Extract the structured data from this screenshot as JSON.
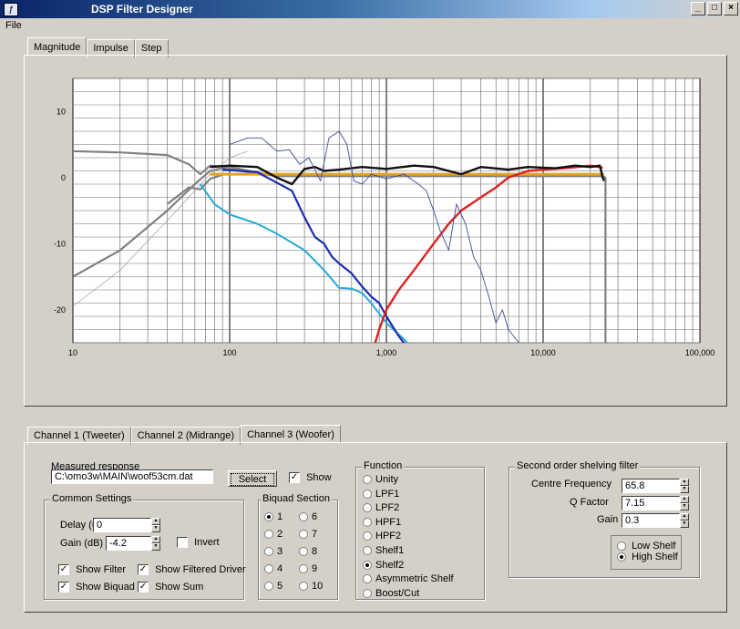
{
  "window": {
    "title": "DSP Filter Designer",
    "min": "_",
    "max": "□",
    "close": "×"
  },
  "menu": {
    "file": "File"
  },
  "plot_tabs": [
    "Magnitude",
    "Impulse",
    "Step"
  ],
  "chart_data": {
    "type": "line",
    "x_scale": "log",
    "xlim": [
      10,
      100000
    ],
    "ylim": [
      -25,
      15
    ],
    "x_ticks": [
      "10",
      "100",
      "1,000",
      "10,000",
      "100,000"
    ],
    "y_ticks": [
      "10",
      "0",
      "-10",
      "-20"
    ],
    "grid": true,
    "series": [
      {
        "color": "#808080",
        "points": [
          [
            10,
            4
          ],
          [
            20,
            3.8
          ],
          [
            40,
            3.4
          ],
          [
            55,
            2
          ],
          [
            65,
            0.5
          ],
          [
            75,
            1.8
          ],
          [
            100,
            1.6
          ],
          [
            200,
            0.2
          ],
          [
            24000,
            0.2
          ],
          [
            25000,
            0
          ],
          [
            25000,
            -25
          ]
        ]
      },
      {
        "color": "#808080",
        "points": [
          [
            10,
            -15
          ],
          [
            20,
            -11
          ],
          [
            40,
            -5
          ],
          [
            60,
            -1
          ],
          [
            75,
            1
          ],
          [
            90,
            1.4
          ],
          [
            200,
            0.2
          ]
        ]
      },
      {
        "color": "#a8a8a8",
        "points": [
          [
            10,
            -19.5
          ],
          [
            20,
            -14
          ],
          [
            40,
            -6.5
          ],
          [
            60,
            -2
          ],
          [
            75,
            0.5
          ],
          [
            100,
            3
          ],
          [
            130,
            4
          ]
        ]
      },
      {
        "color": "#808080",
        "points": [
          [
            40,
            -4
          ],
          [
            55,
            -1.5
          ],
          [
            65,
            -1.8
          ],
          [
            75,
            -0.2
          ],
          [
            90,
            0.4
          ]
        ]
      },
      {
        "color": "#e8a020",
        "points": [
          [
            75,
            0.5
          ],
          [
            24500,
            0.5
          ]
        ]
      },
      {
        "color": "#29a8d8",
        "points": [
          [
            65,
            -1
          ],
          [
            80,
            -4
          ],
          [
            100,
            -5.6
          ],
          [
            150,
            -7
          ],
          [
            200,
            -8.5
          ],
          [
            300,
            -11
          ],
          [
            400,
            -14
          ],
          [
            500,
            -16.7
          ],
          [
            600,
            -16.8
          ],
          [
            700,
            -17.5
          ],
          [
            800,
            -19
          ],
          [
            1000,
            -22
          ],
          [
            1300,
            -24.5
          ],
          [
            1600,
            -27
          ]
        ]
      },
      {
        "color": "#1a2eb0",
        "points": [
          [
            90,
            1.2
          ],
          [
            150,
            0.8
          ],
          [
            250,
            -2
          ],
          [
            300,
            -6
          ],
          [
            350,
            -9
          ],
          [
            400,
            -10
          ],
          [
            450,
            -12
          ],
          [
            500,
            -13
          ],
          [
            600,
            -14.5
          ],
          [
            700,
            -16.5
          ],
          [
            800,
            -18
          ],
          [
            900,
            -19
          ],
          [
            1000,
            -21
          ],
          [
            1200,
            -24
          ],
          [
            1500,
            -27
          ]
        ]
      },
      {
        "color": "#e02020",
        "points": [
          [
            800,
            -27
          ],
          [
            900,
            -23
          ],
          [
            1000,
            -20
          ],
          [
            1200,
            -17
          ],
          [
            1500,
            -14
          ],
          [
            2000,
            -10
          ],
          [
            2500,
            -7
          ],
          [
            3000,
            -5
          ],
          [
            4000,
            -3
          ],
          [
            5000,
            -1.5
          ],
          [
            6000,
            0
          ],
          [
            8000,
            1
          ],
          [
            10000,
            1.2
          ],
          [
            15000,
            1.5
          ],
          [
            20000,
            1.8
          ],
          [
            24000,
            1.5
          ]
        ]
      },
      {
        "color": "#101010",
        "points": [
          [
            75,
            1.6
          ],
          [
            100,
            1.8
          ],
          [
            150,
            1.6
          ],
          [
            200,
            0
          ],
          [
            250,
            -1
          ],
          [
            300,
            1.3
          ],
          [
            350,
            1.6
          ],
          [
            400,
            1
          ],
          [
            500,
            1.2
          ],
          [
            700,
            1.6
          ],
          [
            1000,
            1.3
          ],
          [
            1500,
            1.8
          ],
          [
            2000,
            1.6
          ],
          [
            3000,
            0.5
          ],
          [
            4000,
            1.6
          ],
          [
            6000,
            1.2
          ],
          [
            8000,
            1.6
          ],
          [
            12000,
            1.4
          ],
          [
            16000,
            1.8
          ],
          [
            20000,
            1.6
          ],
          [
            23000,
            1.8
          ],
          [
            24000,
            0
          ],
          [
            24500,
            -0.5
          ]
        ]
      },
      {
        "color": "#3a4a9a",
        "points": [
          [
            100,
            5
          ],
          [
            130,
            6
          ],
          [
            160,
            6
          ],
          [
            200,
            4
          ],
          [
            240,
            4.2
          ],
          [
            280,
            2
          ],
          [
            320,
            3
          ],
          [
            380,
            -0.5
          ],
          [
            430,
            6
          ],
          [
            500,
            7
          ],
          [
            560,
            5
          ],
          [
            620,
            -0.5
          ],
          [
            700,
            -1
          ],
          [
            800,
            0.5
          ],
          [
            1000,
            -0.2
          ],
          [
            1300,
            0.5
          ],
          [
            1600,
            -1
          ],
          [
            1800,
            -2
          ],
          [
            2000,
            -5
          ],
          [
            2200,
            -8
          ],
          [
            2500,
            -11
          ],
          [
            2800,
            -4
          ],
          [
            3200,
            -7
          ],
          [
            3600,
            -12
          ],
          [
            4000,
            -14
          ],
          [
            4500,
            -18
          ],
          [
            5000,
            -22
          ],
          [
            5500,
            -20
          ],
          [
            6000,
            -23
          ],
          [
            7000,
            -25
          ]
        ]
      }
    ]
  },
  "channel_tabs": [
    "Channel 1 (Tweeter)",
    "Channel 2 (Midrange)",
    "Channel 3 (Woofer)"
  ],
  "measured": {
    "label": "Measured response",
    "path": "C:\\omo3w\\MAIN\\woof53cm.dat",
    "select": "Select",
    "show": "Show"
  },
  "common": {
    "label": "Common Settings",
    "delay_label": "Delay (us)",
    "delay": "0",
    "gain_label": "Gain (dB)",
    "gain": "-4.2",
    "invert": "Invert",
    "show_filter": "Show Filter",
    "show_filtered_driver": "Show Filtered Driver",
    "show_biquad": "Show Biquad",
    "show_sum": "Show Sum"
  },
  "biquad": {
    "label": "Biquad Section",
    "options": [
      "1",
      "2",
      "3",
      "4",
      "5",
      "6",
      "7",
      "8",
      "9",
      "10"
    ],
    "selected": "1"
  },
  "function": {
    "label": "Function",
    "options": [
      "Unity",
      "LPF1",
      "LPF2",
      "HPF1",
      "HPF2",
      "Shelf1",
      "Shelf2",
      "Asymmetric Shelf",
      "Boost/Cut"
    ],
    "selected": "Shelf2"
  },
  "shelving": {
    "label": "Second order shelving filter",
    "freq_label": "Centre Frequency",
    "freq": "65.8",
    "q_label": "Q Factor",
    "q": "7.15",
    "gain_label": "Gain",
    "gain": "0.3",
    "low": "Low Shelf",
    "high": "High Shelf",
    "selected": "High Shelf"
  }
}
